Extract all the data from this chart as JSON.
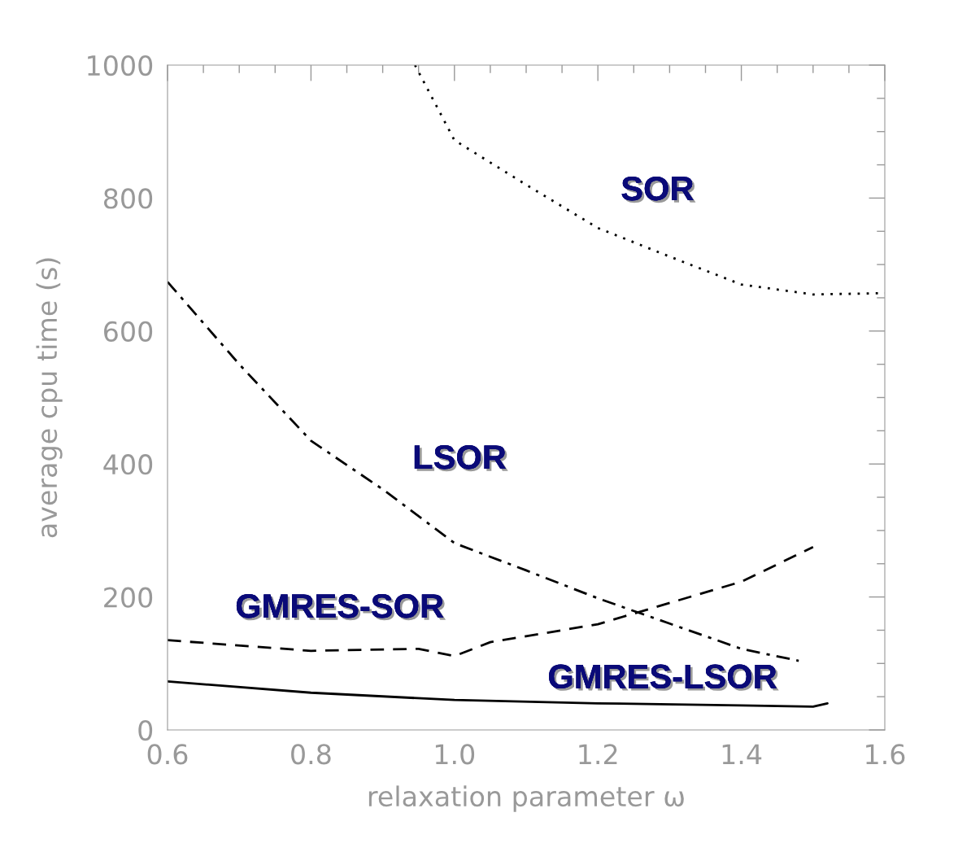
{
  "chart_data": {
    "type": "line",
    "xlabel": "relaxation parameter ω",
    "ylabel": "average cpu time (s)",
    "xlim": [
      0.6,
      1.6
    ],
    "xticks": [
      {
        "value": 0.6,
        "label": "0.6"
      },
      {
        "value": 0.8,
        "label": "0.8"
      },
      {
        "value": 1.0,
        "label": "1.0"
      },
      {
        "value": 1.2,
        "label": "1.2"
      },
      {
        "value": 1.4,
        "label": "1.4"
      },
      {
        "value": 1.6,
        "label": "1.6"
      }
    ],
    "ylim": [
      0,
      1000
    ],
    "yticks": [
      0,
      200,
      400,
      600,
      800,
      1000
    ],
    "grid": false,
    "legend": false,
    "series": [
      {
        "name": "SOR",
        "color": "#000000",
        "line_style": "dotted",
        "x": [
          0.945,
          1.0,
          1.1,
          1.2,
          1.3,
          1.4,
          1.5,
          1.6
        ],
        "values": [
          1000,
          887,
          820,
          755,
          712,
          670,
          655,
          657
        ]
      },
      {
        "name": "LSOR",
        "color": "#000000",
        "line_style": "dashdot",
        "x": [
          0.6,
          0.7,
          0.8,
          0.9,
          1.0,
          1.1,
          1.2,
          1.3,
          1.4,
          1.48
        ],
        "values": [
          674,
          550,
          435,
          362,
          281,
          240,
          198,
          160,
          122,
          104
        ]
      },
      {
        "name": "GMRES-SOR",
        "color": "#000000",
        "line_style": "dashed",
        "x": [
          0.6,
          0.8,
          0.95,
          1.0,
          1.05,
          1.2,
          1.4,
          1.5
        ],
        "values": [
          135,
          119,
          122,
          111,
          132,
          159,
          223,
          275
        ]
      },
      {
        "name": "GMRES-LSOR",
        "color": "#000000",
        "line_style": "solid",
        "x": [
          0.6,
          0.8,
          1.0,
          1.2,
          1.4,
          1.5,
          1.52
        ],
        "values": [
          73,
          56,
          45,
          40,
          37,
          35,
          40
        ]
      }
    ]
  }
}
